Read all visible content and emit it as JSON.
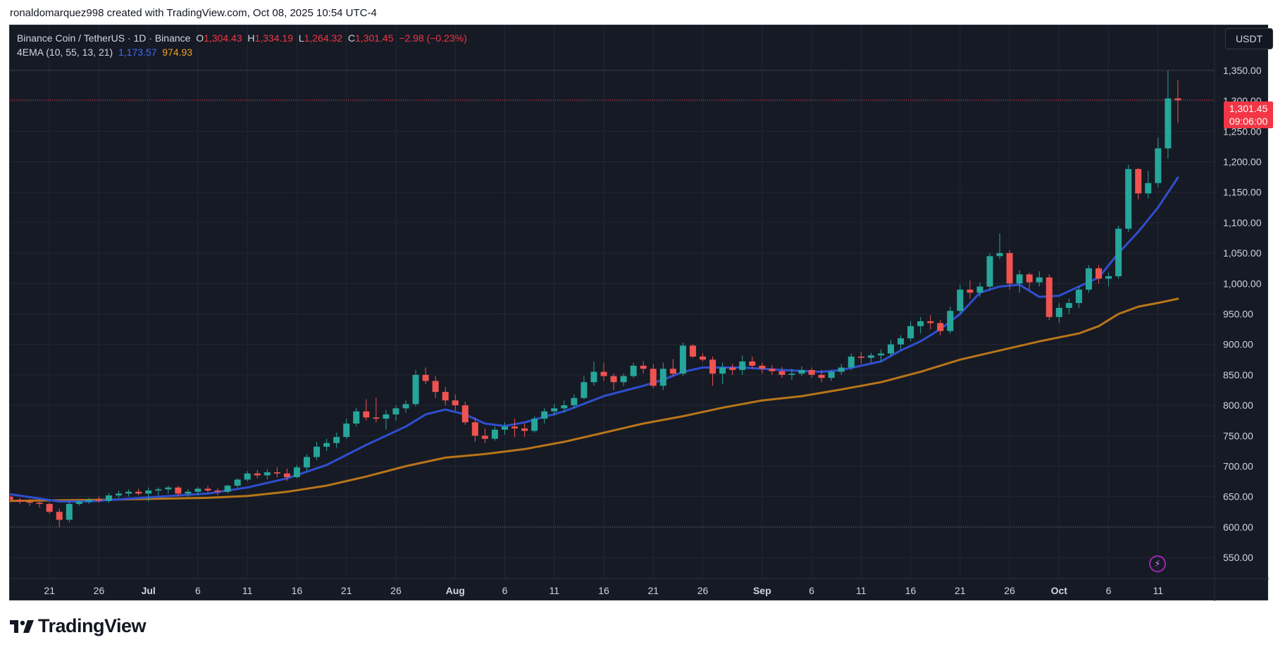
{
  "attribution": "ronaldomarquez998 created with TradingView.com, Oct 08, 2025 10:54 UTC-4",
  "legend": {
    "symbol": "Binance Coin / TetherUS · 1D · Binance",
    "open_label": "O",
    "open": "1,304.43",
    "high_label": "H",
    "high": "1,334.19",
    "low_label": "L",
    "low": "1,264.32",
    "close_label": "C",
    "close": "1,301.45",
    "change": "−2.98 (−0.23%)",
    "indicator": "4EMA (10, 55, 13, 21)",
    "ema_fast": "1,173.57",
    "ema_slow": "974.93"
  },
  "currency_button": "USDT",
  "price_tag": {
    "price": "1,301.45",
    "countdown": "09:06:00"
  },
  "brand": "TradingView",
  "colors": {
    "background": "#161a25",
    "grid": "#232734",
    "up": "#26a69a",
    "down": "#ef5350",
    "ema_fast": "#2f4fd0",
    "ema_slow": "#b8751a",
    "price_line": "#f23645",
    "axis_text": "#d1d4dc"
  },
  "chart_data": {
    "type": "candlestick",
    "symbol": "Binance Coin / TetherUS",
    "interval": "1D",
    "ylim": [
      520,
      1380
    ],
    "y_ticks": [
      550,
      600,
      650,
      700,
      750,
      800,
      850,
      900,
      950,
      1000,
      1050,
      1100,
      1150,
      1200,
      1250,
      1300,
      1350
    ],
    "y_tick_labels": [
      "550.00",
      "600.00",
      "650.00",
      "700.00",
      "750.00",
      "800.00",
      "850.00",
      "900.00",
      "950.00",
      "1,000.00",
      "1,050.00",
      "1,100.00",
      "1,150.00",
      "1,200.00",
      "1,250.00",
      "1,300.00",
      "1,350.00"
    ],
    "x_ticks": [
      {
        "label": "21",
        "idx": 4
      },
      {
        "label": "26",
        "idx": 9
      },
      {
        "label": "Jul",
        "idx": 14
      },
      {
        "label": "6",
        "idx": 19
      },
      {
        "label": "11",
        "idx": 24
      },
      {
        "label": "16",
        "idx": 29
      },
      {
        "label": "21",
        "idx": 34
      },
      {
        "label": "26",
        "idx": 39
      },
      {
        "label": "Aug",
        "idx": 45
      },
      {
        "label": "6",
        "idx": 50
      },
      {
        "label": "11",
        "idx": 55
      },
      {
        "label": "16",
        "idx": 60
      },
      {
        "label": "21",
        "idx": 65
      },
      {
        "label": "26",
        "idx": 70
      },
      {
        "label": "Sep",
        "idx": 76
      },
      {
        "label": "6",
        "idx": 81
      },
      {
        "label": "11",
        "idx": 86
      },
      {
        "label": "16",
        "idx": 91
      },
      {
        "label": "21",
        "idx": 96
      },
      {
        "label": "26",
        "idx": 101
      },
      {
        "label": "Oct",
        "idx": 106
      },
      {
        "label": "6",
        "idx": 111
      },
      {
        "label": "11",
        "idx": 116
      }
    ],
    "current_price": 1301.45,
    "dotted_levels": [
      1350,
      600
    ],
    "candles": [
      [
        650,
        652,
        640,
        645
      ],
      [
        645,
        648,
        638,
        642
      ],
      [
        642,
        646,
        635,
        640
      ],
      [
        640,
        645,
        632,
        638
      ],
      [
        638,
        640,
        622,
        625
      ],
      [
        625,
        630,
        600,
        612
      ],
      [
        612,
        642,
        608,
        638
      ],
      [
        638,
        645,
        635,
        642
      ],
      [
        642,
        648,
        638,
        645
      ],
      [
        645,
        650,
        640,
        643
      ],
      [
        643,
        656,
        640,
        652
      ],
      [
        652,
        660,
        648,
        655
      ],
      [
        655,
        662,
        650,
        658
      ],
      [
        658,
        663,
        652,
        655
      ],
      [
        655,
        665,
        642,
        660
      ],
      [
        660,
        665,
        652,
        662
      ],
      [
        662,
        668,
        655,
        665
      ],
      [
        665,
        668,
        650,
        655
      ],
      [
        655,
        662,
        650,
        658
      ],
      [
        658,
        666,
        652,
        663
      ],
      [
        663,
        668,
        657,
        660
      ],
      [
        660,
        664,
        652,
        658
      ],
      [
        658,
        670,
        655,
        668
      ],
      [
        668,
        680,
        665,
        678
      ],
      [
        678,
        692,
        675,
        688
      ],
      [
        688,
        694,
        680,
        685
      ],
      [
        685,
        695,
        678,
        690
      ],
      [
        690,
        698,
        682,
        688
      ],
      [
        688,
        696,
        676,
        682
      ],
      [
        682,
        702,
        680,
        698
      ],
      [
        698,
        720,
        692,
        715
      ],
      [
        715,
        740,
        710,
        732
      ],
      [
        732,
        745,
        725,
        738
      ],
      [
        738,
        755,
        730,
        748
      ],
      [
        748,
        778,
        745,
        770
      ],
      [
        770,
        796,
        765,
        790
      ],
      [
        790,
        810,
        775,
        780
      ],
      [
        780,
        812,
        772,
        778
      ],
      [
        778,
        792,
        760,
        785
      ],
      [
        785,
        800,
        775,
        795
      ],
      [
        795,
        808,
        788,
        802
      ],
      [
        802,
        858,
        798,
        850
      ],
      [
        850,
        862,
        835,
        840
      ],
      [
        840,
        848,
        812,
        822
      ],
      [
        822,
        830,
        800,
        808
      ],
      [
        808,
        818,
        790,
        800
      ],
      [
        800,
        806,
        768,
        772
      ],
      [
        772,
        780,
        740,
        750
      ],
      [
        750,
        762,
        738,
        745
      ],
      [
        745,
        765,
        742,
        760
      ],
      [
        760,
        772,
        752,
        765
      ],
      [
        765,
        778,
        748,
        762
      ],
      [
        762,
        770,
        748,
        758
      ],
      [
        758,
        782,
        755,
        778
      ],
      [
        778,
        795,
        770,
        790
      ],
      [
        790,
        802,
        783,
        795
      ],
      [
        795,
        808,
        788,
        800
      ],
      [
        800,
        818,
        795,
        812
      ],
      [
        812,
        848,
        810,
        838
      ],
      [
        838,
        872,
        832,
        855
      ],
      [
        855,
        870,
        840,
        848
      ],
      [
        848,
        852,
        825,
        838
      ],
      [
        838,
        852,
        832,
        848
      ],
      [
        848,
        870,
        845,
        865
      ],
      [
        865,
        872,
        852,
        860
      ],
      [
        860,
        868,
        828,
        832
      ],
      [
        832,
        870,
        825,
        860
      ],
      [
        860,
        876,
        848,
        852
      ],
      [
        852,
        903,
        848,
        898
      ],
      [
        898,
        900,
        878,
        880
      ],
      [
        880,
        885,
        872,
        875
      ],
      [
        875,
        880,
        832,
        852
      ],
      [
        852,
        870,
        835,
        862
      ],
      [
        862,
        868,
        850,
        858
      ],
      [
        858,
        882,
        850,
        872
      ],
      [
        872,
        880,
        860,
        865
      ],
      [
        865,
        870,
        852,
        860
      ],
      [
        860,
        866,
        850,
        856
      ],
      [
        856,
        863,
        845,
        850
      ],
      [
        850,
        860,
        842,
        852
      ],
      [
        852,
        864,
        848,
        858
      ],
      [
        858,
        862,
        845,
        850
      ],
      [
        850,
        858,
        838,
        845
      ],
      [
        845,
        858,
        840,
        855
      ],
      [
        855,
        868,
        850,
        862
      ],
      [
        862,
        885,
        858,
        880
      ],
      [
        880,
        888,
        868,
        878
      ],
      [
        878,
        886,
        870,
        882
      ],
      [
        882,
        892,
        872,
        885
      ],
      [
        885,
        908,
        880,
        900
      ],
      [
        900,
        915,
        892,
        910
      ],
      [
        910,
        938,
        905,
        930
      ],
      [
        930,
        945,
        918,
        938
      ],
      [
        938,
        948,
        925,
        935
      ],
      [
        935,
        940,
        915,
        922
      ],
      [
        922,
        962,
        918,
        955
      ],
      [
        955,
        998,
        950,
        990
      ],
      [
        990,
        1005,
        975,
        985
      ],
      [
        985,
        1002,
        978,
        995
      ],
      [
        995,
        1050,
        990,
        1045
      ],
      [
        1045,
        1082,
        1040,
        1050
      ],
      [
        1050,
        1055,
        990,
        1000
      ],
      [
        1000,
        1022,
        985,
        1015
      ],
      [
        1015,
        1018,
        990,
        1002
      ],
      [
        1002,
        1020,
        995,
        1010
      ],
      [
        1010,
        1015,
        940,
        945
      ],
      [
        945,
        968,
        935,
        960
      ],
      [
        960,
        975,
        950,
        968
      ],
      [
        968,
        995,
        960,
        990
      ],
      [
        990,
        1030,
        985,
        1025
      ],
      [
        1025,
        1030,
        1000,
        1008
      ],
      [
        1008,
        1018,
        995,
        1012
      ],
      [
        1012,
        1095,
        1008,
        1090
      ],
      [
        1090,
        1195,
        1085,
        1188
      ],
      [
        1188,
        1190,
        1138,
        1148
      ],
      [
        1148,
        1185,
        1140,
        1165
      ],
      [
        1165,
        1240,
        1158,
        1222
      ],
      [
        1222,
        1350,
        1205,
        1304
      ],
      [
        1304,
        1334,
        1264,
        1301
      ]
    ],
    "ema_fast_series": {
      "name": "1,173.57",
      "points": [
        [
          0,
          654
        ],
        [
          5,
          642
        ],
        [
          8,
          642
        ],
        [
          15,
          650
        ],
        [
          20,
          655
        ],
        [
          24,
          665
        ],
        [
          28,
          680
        ],
        [
          32,
          702
        ],
        [
          36,
          735
        ],
        [
          40,
          765
        ],
        [
          42,
          785
        ],
        [
          44,
          793
        ],
        [
          46,
          785
        ],
        [
          48,
          770
        ],
        [
          50,
          766
        ],
        [
          52,
          772
        ],
        [
          56,
          790
        ],
        [
          60,
          815
        ],
        [
          64,
          832
        ],
        [
          66,
          842
        ],
        [
          68,
          855
        ],
        [
          70,
          862
        ],
        [
          74,
          862
        ],
        [
          78,
          858
        ],
        [
          82,
          855
        ],
        [
          84,
          858
        ],
        [
          88,
          872
        ],
        [
          90,
          890
        ],
        [
          92,
          905
        ],
        [
          94,
          925
        ],
        [
          96,
          950
        ],
        [
          98,
          985
        ],
        [
          100,
          995
        ],
        [
          102,
          998
        ],
        [
          104,
          978
        ],
        [
          106,
          980
        ],
        [
          108,
          995
        ],
        [
          110,
          1010
        ],
        [
          112,
          1050
        ],
        [
          114,
          1085
        ],
        [
          116,
          1125
        ],
        [
          118,
          1174
        ]
      ]
    },
    "ema_slow_series": {
      "name": "974.93",
      "points": [
        [
          0,
          643
        ],
        [
          10,
          645
        ],
        [
          20,
          648
        ],
        [
          24,
          651
        ],
        [
          28,
          658
        ],
        [
          32,
          668
        ],
        [
          36,
          683
        ],
        [
          40,
          700
        ],
        [
          44,
          714
        ],
        [
          48,
          720
        ],
        [
          52,
          728
        ],
        [
          56,
          740
        ],
        [
          60,
          755
        ],
        [
          64,
          770
        ],
        [
          68,
          782
        ],
        [
          72,
          796
        ],
        [
          76,
          808
        ],
        [
          80,
          815
        ],
        [
          84,
          826
        ],
        [
          88,
          838
        ],
        [
          92,
          855
        ],
        [
          96,
          875
        ],
        [
          100,
          890
        ],
        [
          104,
          905
        ],
        [
          108,
          918
        ],
        [
          110,
          930
        ],
        [
          112,
          950
        ],
        [
          114,
          962
        ],
        [
          116,
          968
        ],
        [
          118,
          975
        ]
      ]
    }
  }
}
